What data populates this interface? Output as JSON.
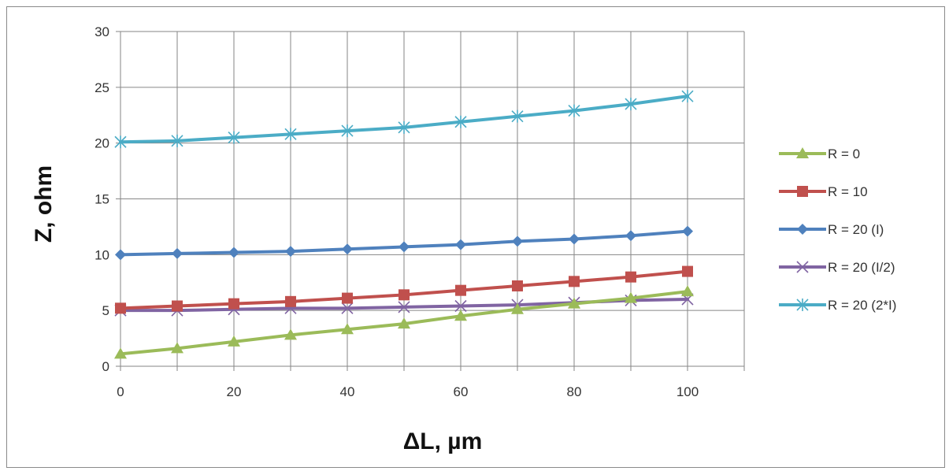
{
  "chart_data": {
    "type": "line",
    "title": "",
    "xlabel": "ΔL, µm",
    "ylabel": "Z, ohm",
    "xlim": [
      0,
      110
    ],
    "ylim": [
      0,
      30
    ],
    "x_ticks": [
      0,
      20,
      40,
      60,
      80,
      100
    ],
    "y_ticks": [
      0,
      5,
      10,
      15,
      20,
      25,
      30
    ],
    "x_grid": [
      0,
      10,
      20,
      30,
      40,
      50,
      60,
      70,
      80,
      90,
      100,
      110
    ],
    "grid": true,
    "legend_position": "right",
    "x": [
      0,
      10,
      20,
      30,
      40,
      50,
      60,
      70,
      80,
      90,
      100
    ],
    "series": [
      {
        "name": "R = 0",
        "color": "#9bbb59",
        "marker": "triangle",
        "values": [
          1.1,
          1.6,
          2.2,
          2.8,
          3.3,
          3.8,
          4.5,
          5.1,
          5.6,
          6.1,
          6.7
        ]
      },
      {
        "name": "R = 10",
        "color": "#c0504d",
        "marker": "square",
        "values": [
          5.2,
          5.4,
          5.6,
          5.8,
          6.1,
          6.4,
          6.8,
          7.2,
          7.6,
          8.0,
          8.5
        ]
      },
      {
        "name": "R = 20 (I)",
        "color": "#4f81bd",
        "marker": "diamond",
        "values": [
          10.0,
          10.1,
          10.2,
          10.3,
          10.5,
          10.7,
          10.9,
          11.2,
          11.4,
          11.7,
          12.1
        ]
      },
      {
        "name": "R = 20 (I/2)",
        "color": "#8064a2",
        "marker": "x",
        "values": [
          5.0,
          5.0,
          5.1,
          5.2,
          5.2,
          5.3,
          5.4,
          5.5,
          5.7,
          5.9,
          6.0
        ]
      },
      {
        "name": "R = 20 (2*I)",
        "color": "#4bacc6",
        "marker": "star",
        "values": [
          20.1,
          20.2,
          20.5,
          20.8,
          21.1,
          21.4,
          21.9,
          22.4,
          22.9,
          23.5,
          24.2
        ]
      }
    ]
  }
}
